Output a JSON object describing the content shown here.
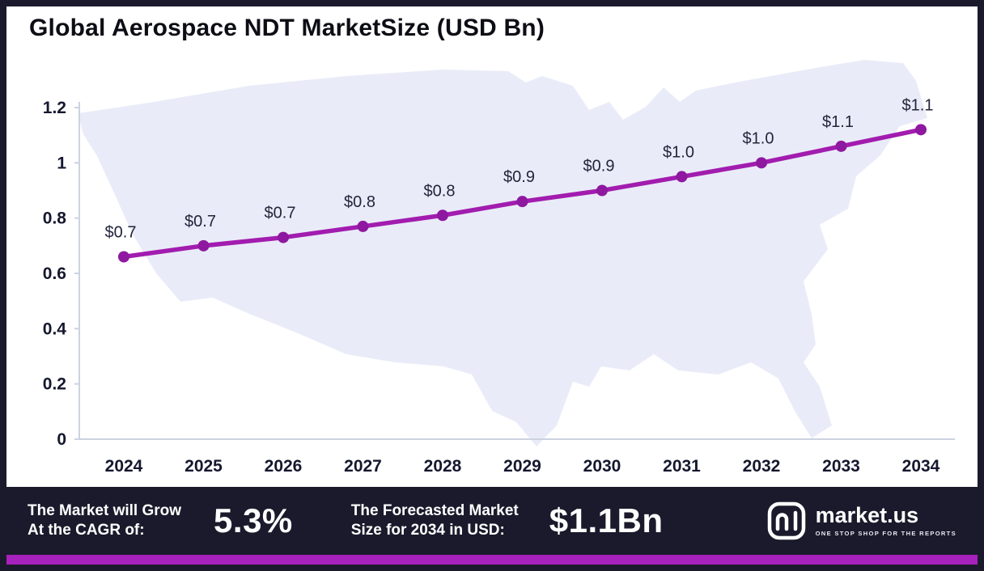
{
  "title": "Global Aerospace NDT MarketSize (USD Bn)",
  "chart_data": {
    "type": "line",
    "title": "Global Aerospace NDT MarketSize (USD Bn)",
    "x": [
      "2024",
      "2025",
      "2026",
      "2027",
      "2028",
      "2029",
      "2030",
      "2031",
      "2032",
      "2033",
      "2034"
    ],
    "values": [
      0.66,
      0.7,
      0.73,
      0.77,
      0.81,
      0.86,
      0.9,
      0.95,
      1.0,
      1.06,
      1.12
    ],
    "point_labels": [
      "$0.7",
      "$0.7",
      "$0.7",
      "$0.8",
      "$0.8",
      "$0.9",
      "$0.9",
      "$1.0",
      "$1.0",
      "$1.1",
      "$1.1"
    ],
    "ylim": [
      0,
      1.2
    ],
    "yticks": [
      0,
      0.2,
      0.4,
      0.6,
      0.8,
      1,
      1.2
    ],
    "grid": false,
    "legend": "none",
    "line_color": "#a21caf",
    "dot_color": "#8e18a0",
    "axis_color": "#ccd2e0",
    "label_color": "#23243c",
    "map_fill": "#e9ecf8"
  },
  "footer": {
    "cagr_label_line1": "The Market will Grow",
    "cagr_label_line2": "At the CAGR of:",
    "cagr_value": "5.3%",
    "forecast_label_line1": "The Forecasted Market",
    "forecast_label_line2": "Size for 2034 in USD:",
    "forecast_value": "$1.1Bn",
    "brand_name": "market.us",
    "brand_tagline": "ONE STOP SHOP FOR THE REPORTS"
  }
}
